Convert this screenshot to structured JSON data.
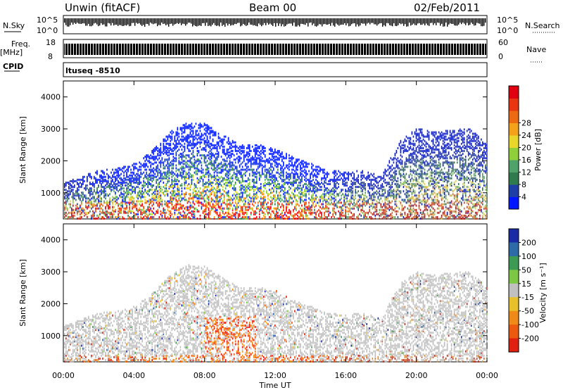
{
  "header": {
    "station": "Unwin (fitACF)",
    "beam": "Beam 00",
    "date": "02/Feb/2011"
  },
  "nsky_panel": {
    "left_label": "N.Sky",
    "right_label": "N.Search",
    "left_ticks": [
      "10^5",
      "10^0"
    ],
    "right_ticks": [
      "10^5",
      "10^0"
    ]
  },
  "freq_panel": {
    "left_label": "Freq.",
    "left_unit": "[MHz]",
    "right_label": "Nave",
    "left_ticks": [
      "18",
      "8"
    ],
    "right_ticks": [
      "60",
      "0"
    ]
  },
  "cpid_panel": {
    "label": "CPID",
    "value": "ltuseq -8510"
  },
  "time_axis": {
    "label": "Time UT",
    "ticks": [
      "00:00",
      "04:00",
      "08:00",
      "12:00",
      "16:00",
      "20:00",
      "00:00"
    ]
  },
  "chart_data": [
    {
      "type": "heatmap",
      "title": "",
      "xlabel": "",
      "ylabel": "Slant Range [km]",
      "ylim": [
        180,
        4500
      ],
      "yticks": [
        1000,
        2000,
        3000,
        4000
      ],
      "x_hours": [
        0,
        24
      ],
      "colorbar_label": "Power [dB]",
      "colorbar_ticks": [
        "4",
        "8",
        "12",
        "16",
        "20",
        "24",
        "28"
      ],
      "colorbar_colors": [
        "#0018ff",
        "#1f3fa8",
        "#2f7b4e",
        "#4fa36a",
        "#8fcf3a",
        "#e8d72a",
        "#f3a21a",
        "#ee6a12",
        "#e83510",
        "#e00010"
      ],
      "range_envelope_km": {
        "hours": [
          0,
          1,
          2,
          3,
          4,
          5,
          6,
          7,
          8,
          9,
          10,
          11,
          12,
          13,
          14,
          15,
          16,
          17,
          18,
          19,
          20,
          21,
          22,
          23,
          24
        ],
        "upper": [
          1300,
          1500,
          1700,
          1750,
          1900,
          2300,
          2900,
          3200,
          3150,
          2800,
          2500,
          2500,
          2400,
          2100,
          1900,
          1700,
          1650,
          1700,
          1500,
          2600,
          3000,
          2900,
          2950,
          3000,
          2500
        ]
      }
    },
    {
      "type": "heatmap",
      "title": "",
      "xlabel": "Time UT",
      "ylabel": "Slant Range [km]",
      "ylim": [
        180,
        4500
      ],
      "yticks": [
        1000,
        2000,
        3000,
        4000
      ],
      "x_hours": [
        0,
        24
      ],
      "colorbar_label": "Velocity [m s⁻¹]",
      "colorbar_ticks": [
        "200",
        "100",
        "50",
        "15",
        "-15",
        "-50",
        "-100",
        "-200"
      ],
      "colorbar_colors": [
        "#1a2aa6",
        "#2c6aa8",
        "#3c9a52",
        "#7cc845",
        "#c0c0c0",
        "#e8c02a",
        "#ef8a18",
        "#ec5a10",
        "#e02010"
      ],
      "range_envelope_km": {
        "hours": [
          0,
          1,
          2,
          3,
          4,
          5,
          6,
          7,
          8,
          9,
          10,
          11,
          12,
          13,
          14,
          15,
          16,
          17,
          18,
          19,
          20,
          21,
          22,
          23,
          24
        ],
        "upper": [
          1300,
          1500,
          1700,
          1750,
          1900,
          2300,
          2900,
          3200,
          3150,
          2800,
          2500,
          2500,
          2400,
          2100,
          1900,
          1700,
          1650,
          1700,
          1500,
          2600,
          3000,
          2900,
          2950,
          3000,
          2500
        ]
      }
    }
  ]
}
